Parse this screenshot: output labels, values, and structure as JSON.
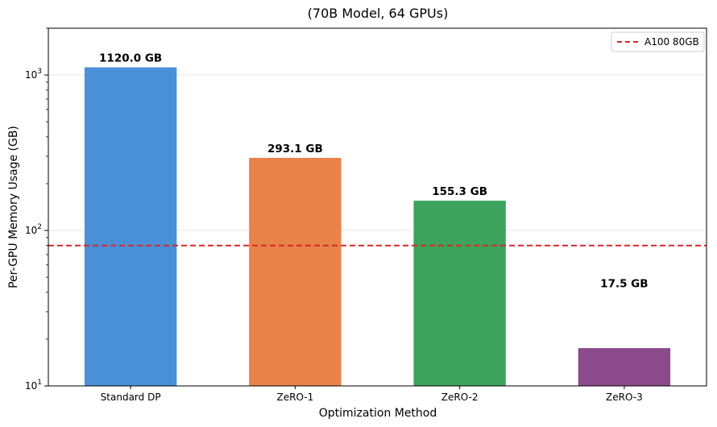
{
  "chart_data": {
    "type": "bar",
    "title": "(70B Model, 64 GPUs)",
    "xlabel": "Optimization Method",
    "ylabel": "Per-GPU Memory Usage (GB)",
    "yscale": "log",
    "ylim": [
      10,
      2000
    ],
    "grid": "horizontal, light",
    "categories": [
      "Standard DP",
      "ZeRO-1",
      "ZeRO-2",
      "ZeRO-3"
    ],
    "values": [
      1120.0,
      293.1,
      155.3,
      17.5
    ],
    "data_labels": [
      "1120.0 GB",
      "293.1 GB",
      "155.3 GB",
      "17.5 GB"
    ],
    "bar_colors": [
      "#4a90d9",
      "#e8834a",
      "#3da35d",
      "#8b4a8b"
    ],
    "y_tick_labels": [
      {
        "base": "10",
        "exp": "1",
        "value": 10
      },
      {
        "base": "10",
        "exp": "2",
        "value": 100
      },
      {
        "base": "10",
        "exp": "3",
        "value": 1000
      }
    ],
    "reference_line": {
      "label": "A100 80GB",
      "value": 80,
      "color": "#d62728",
      "style": "dashed"
    },
    "legend_position": "top-right"
  }
}
